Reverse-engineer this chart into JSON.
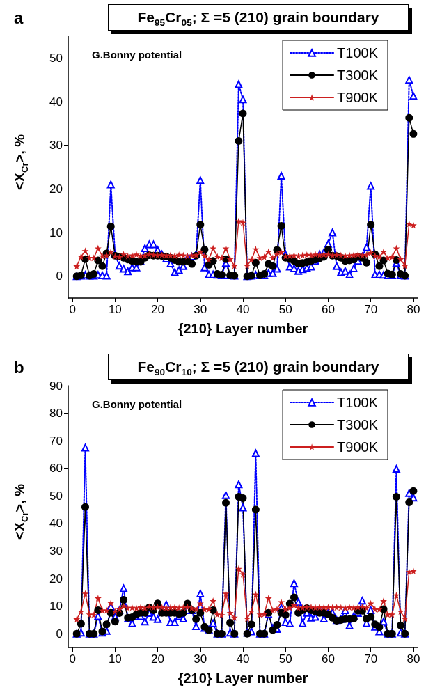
{
  "chart_data": [
    {
      "type": "line",
      "title": "Fe$_{95}$Cr$_{05}$; Σ =5 (210) grain boundary",
      "xlabel": "{210} Layer number",
      "ylabel": "<X$_{Cr}$>, %",
      "annotations": [
        "a",
        "G.Bonny potential"
      ],
      "x": [
        1,
        2,
        3,
        4,
        5,
        6,
        7,
        8,
        9,
        10,
        11,
        12,
        13,
        14,
        15,
        16,
        17,
        18,
        19,
        20,
        21,
        22,
        23,
        24,
        25,
        26,
        27,
        28,
        29,
        30,
        31,
        32,
        33,
        34,
        35,
        36,
        37,
        38,
        39,
        40,
        41,
        42,
        43,
        44,
        45,
        46,
        47,
        48,
        49,
        50,
        51,
        52,
        53,
        54,
        55,
        56,
        57,
        58,
        59,
        60,
        61,
        62,
        63,
        64,
        65,
        66,
        67,
        68,
        69,
        70,
        71,
        72,
        73,
        74,
        75,
        76,
        77,
        78,
        79,
        80
      ],
      "xlim": [
        -1,
        81
      ],
      "xticks": [
        0,
        10,
        20,
        30,
        40,
        50,
        60,
        70,
        80
      ],
      "ylim": [
        -5,
        55
      ],
      "yticks": [
        0,
        10,
        20,
        30,
        40,
        50
      ],
      "grid": false,
      "legend": "top right",
      "series": [
        {
          "name": "T100K",
          "color": "#0000ff",
          "marker": "triangle",
          "line_style": "dotted",
          "values": [
            0,
            0.1,
            0.3,
            0.1,
            0.1,
            0.3,
            0.2,
            0.1,
            21,
            5,
            2.4,
            1.7,
            1.1,
            2,
            2,
            3.4,
            6.4,
            7.3,
            7.3,
            6,
            5,
            4,
            2.9,
            0.9,
            1.4,
            2.3,
            4.2,
            4.5,
            5,
            22,
            2,
            0.4,
            0.4,
            0.3,
            0.2,
            3,
            0.2,
            0.1,
            44,
            40.5,
            0,
            0.1,
            0.3,
            0.2,
            0.2,
            0.7,
            0.7,
            1.7,
            23,
            5,
            2.2,
            1.8,
            1.2,
            1.6,
            1.9,
            2.2,
            3.5,
            5,
            5.5,
            7.4,
            10,
            2.3,
            0.9,
            1.2,
            0.4,
            1.8,
            3.5,
            4.5,
            6.6,
            20.7,
            0.4,
            0.4,
            0.3,
            0.2,
            0.2,
            3,
            0.2,
            0.1,
            45,
            41.3
          ]
        },
        {
          "name": "T300K",
          "color": "#000000",
          "marker": "circle",
          "line_style": "solid",
          "values": [
            0,
            0.2,
            3.9,
            0.1,
            0.5,
            3.6,
            2.3,
            5.2,
            11.4,
            4.7,
            4.5,
            4.2,
            3.8,
            3.5,
            3.3,
            3.3,
            4.2,
            4.8,
            4.7,
            4.7,
            4.6,
            4.5,
            4.2,
            3.7,
            3.3,
            3.3,
            3.5,
            2.8,
            4.7,
            11.8,
            6.1,
            2.6,
            3.5,
            0.5,
            0.3,
            3.9,
            0.2,
            0.1,
            31,
            37.3,
            0,
            0.1,
            3.1,
            0.2,
            0.5,
            2.8,
            2.3,
            6,
            11.5,
            4.2,
            3.9,
            3.5,
            2.9,
            3,
            3.2,
            3.5,
            3.8,
            4.1,
            4.4,
            6.1,
            4.7,
            4.6,
            4.2,
            3.5,
            3.6,
            3.8,
            4.4,
            4.2,
            3.1,
            11.8,
            5,
            2.3,
            3.6,
            0.6,
            0.4,
            3.7,
            0.5,
            0.1,
            36.3,
            32.6
          ]
        },
        {
          "name": "T900K",
          "color": "#cc1f1f",
          "marker": "star",
          "line_style": "solid",
          "values": [
            2.3,
            4.5,
            5.8,
            4.2,
            4.2,
            6.4,
            4.6,
            4.8,
            5.6,
            4.6,
            4.4,
            5,
            4.6,
            4.8,
            5,
            4.7,
            4.8,
            5,
            4.9,
            4.8,
            4.9,
            4.8,
            4.8,
            4.7,
            4.9,
            4.8,
            4.6,
            4.8,
            4.9,
            5.6,
            4.7,
            3.8,
            6.4,
            4.5,
            4.2,
            6.4,
            3.9,
            2.4,
            12.6,
            12.3,
            2.4,
            3.8,
            6.2,
            4.2,
            4.4,
            5.6,
            4.2,
            5,
            5.5,
            4.6,
            4.7,
            4.8,
            4.6,
            4.8,
            4.9,
            4.8,
            5,
            4.9,
            5,
            5,
            4.8,
            4.9,
            4.8,
            4.7,
            4.8,
            4.9,
            5,
            4.8,
            4.9,
            5.4,
            4.7,
            4.5,
            5.6,
            4.2,
            4.4,
            6.4,
            3.9,
            2.4,
            12,
            11.7
          ]
        }
      ]
    },
    {
      "type": "line",
      "title": "Fe$_{90}$Cr$_{10}$; Σ =5 (210) grain boundary",
      "xlabel": "{210} Layer number",
      "ylabel": "<X$_{Cr}$>, %",
      "annotations": [
        "b",
        "G.Bonny potential"
      ],
      "x": [
        1,
        2,
        3,
        4,
        5,
        6,
        7,
        8,
        9,
        10,
        11,
        12,
        13,
        14,
        15,
        16,
        17,
        18,
        19,
        20,
        21,
        22,
        23,
        24,
        25,
        26,
        27,
        28,
        29,
        30,
        31,
        32,
        33,
        34,
        35,
        36,
        37,
        38,
        39,
        40,
        41,
        42,
        43,
        44,
        45,
        46,
        47,
        48,
        49,
        50,
        51,
        52,
        53,
        54,
        55,
        56,
        57,
        58,
        59,
        60,
        61,
        62,
        63,
        64,
        65,
        66,
        67,
        68,
        69,
        70,
        71,
        72,
        73,
        74,
        75,
        76,
        77,
        78,
        79,
        80
      ],
      "xlim": [
        -1,
        81
      ],
      "xticks": [
        0,
        10,
        20,
        30,
        40,
        50,
        60,
        70,
        80
      ],
      "ylim": [
        -5,
        90
      ],
      "yticks": [
        0,
        10,
        20,
        30,
        40,
        50,
        60,
        70,
        80,
        90
      ],
      "grid": false,
      "legend": "top right",
      "series": [
        {
          "name": "T100K",
          "color": "#0000ff",
          "marker": "triangle",
          "line_style": "dotted",
          "values": [
            0,
            0.4,
            67.5,
            0,
            0,
            6.4,
            0.4,
            1,
            9.8,
            6.1,
            8.5,
            16.5,
            5.5,
            3.8,
            6.4,
            6.4,
            4.4,
            7.5,
            6.1,
            5.3,
            8.3,
            10.6,
            4.2,
            4.2,
            6.4,
            5.5,
            8.5,
            8.5,
            2.7,
            14.6,
            2.1,
            1.5,
            3.8,
            0,
            0,
            50.3,
            0.4,
            0,
            54.2,
            45.8,
            0.4,
            0.8,
            65.5,
            0,
            0,
            7,
            2.1,
            1.7,
            9.3,
            4.2,
            3.8,
            18.3,
            11.5,
            3.8,
            7.6,
            5.8,
            6.1,
            8.5,
            5.5,
            7.6,
            7.6,
            4.9,
            5.3,
            8.5,
            3,
            6.4,
            7.5,
            12,
            3.8,
            8.5,
            2.5,
            0.8,
            4.4,
            0,
            0,
            59.8,
            0.4,
            0,
            51,
            49.4
          ]
        },
        {
          "name": "T300K",
          "color": "#000000",
          "marker": "circle",
          "line_style": "solid",
          "values": [
            0,
            3.6,
            46,
            0,
            0,
            8.5,
            0.8,
            3.4,
            7.6,
            4.4,
            7.5,
            12.3,
            5.8,
            6,
            7,
            7.6,
            7.6,
            9.5,
            8.5,
            11,
            7.6,
            7.6,
            7.6,
            7.6,
            7.2,
            7.6,
            10.9,
            8.5,
            5.3,
            7.6,
            2.5,
            1.3,
            8.5,
            0,
            0,
            47.5,
            4,
            0,
            49.7,
            49.2,
            0,
            3.4,
            45,
            0,
            0,
            7.6,
            1.3,
            3.2,
            7.6,
            6.8,
            10.9,
            13.2,
            7.6,
            8.5,
            9.3,
            8.5,
            8,
            7.6,
            7.6,
            7,
            5.8,
            4.7,
            5,
            5.3,
            5.3,
            5.5,
            8.3,
            8.3,
            5.5,
            6.1,
            3.4,
            2.4,
            8.9,
            0,
            0,
            49.7,
            3,
            0,
            47.7,
            51.8
          ]
        },
        {
          "name": "T900K",
          "color": "#cc1f1f",
          "marker": "star",
          "line_style": "solid",
          "values": [
            5.3,
            8.1,
            14.6,
            7,
            6.8,
            12.9,
            8.5,
            8.5,
            11.2,
            8.1,
            8.9,
            10,
            9.3,
            9.5,
            9.3,
            9.6,
            9.4,
            9.8,
            9.5,
            9.7,
            9.6,
            9.4,
            9.5,
            9.6,
            9.4,
            9.5,
            9.7,
            9.3,
            9,
            11,
            8.9,
            8.9,
            11.9,
            7,
            6.8,
            14.6,
            7.6,
            5.9,
            23.6,
            21.6,
            5.5,
            8.1,
            14.3,
            7,
            7.2,
            12.9,
            8.5,
            8.9,
            11.5,
            8.9,
            9.5,
            10.4,
            9.4,
            9.5,
            9.6,
            9.7,
            9.5,
            9.6,
            9.7,
            9.6,
            9.5,
            9.6,
            9.5,
            9.4,
            9.6,
            9.5,
            9.7,
            9.8,
            9.4,
            11,
            8.9,
            8.9,
            11.9,
            7,
            7,
            14,
            8.1,
            5.5,
            22.5,
            22.8
          ]
        }
      ]
    }
  ]
}
